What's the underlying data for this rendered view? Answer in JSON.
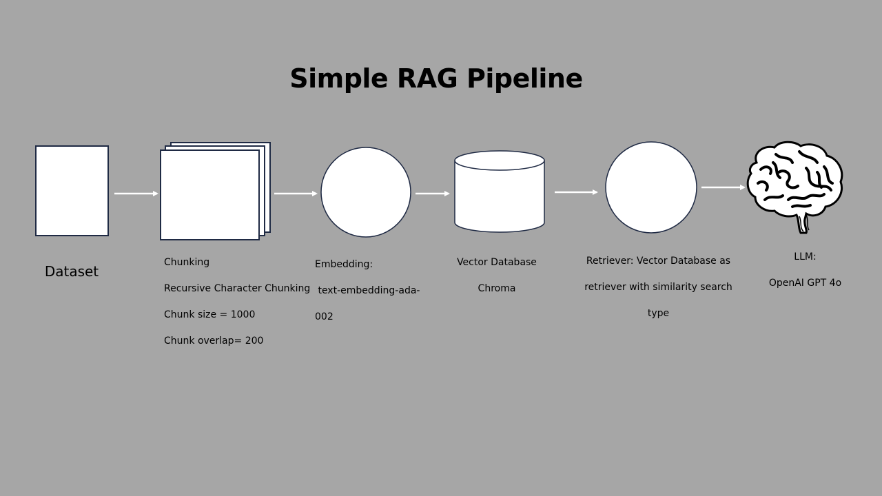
{
  "title": "Simple RAG Pipeline",
  "colors": {
    "background": "#a6a6a6",
    "shape_fill": "#ffffff",
    "shape_stroke": "#1f2a44",
    "arrow": "#ffffff"
  },
  "steps": [
    {
      "id": "dataset",
      "shape": "rectangle",
      "label_lines": [
        "Dataset"
      ]
    },
    {
      "id": "chunking",
      "shape": "stacked-pages",
      "label_lines": [
        "Chunking",
        "Recursive Character Chunking",
        "Chunk size = 1000",
        "Chunk overlap= 200"
      ]
    },
    {
      "id": "embedding",
      "shape": "circle",
      "label_lines": [
        "Embedding:",
        " text-embedding-ada-",
        "002"
      ]
    },
    {
      "id": "vectordb",
      "shape": "cylinder",
      "label_lines": [
        "Vector Database",
        "Chroma"
      ]
    },
    {
      "id": "retriever",
      "shape": "circle",
      "label_lines": [
        "Retriever: Vector Database as",
        "retriever with similarity search",
        "type"
      ]
    },
    {
      "id": "llm",
      "shape": "brain",
      "icon": "brain-icon",
      "label_lines": [
        "LLM:",
        "OpenAI GPT 4o"
      ]
    }
  ]
}
